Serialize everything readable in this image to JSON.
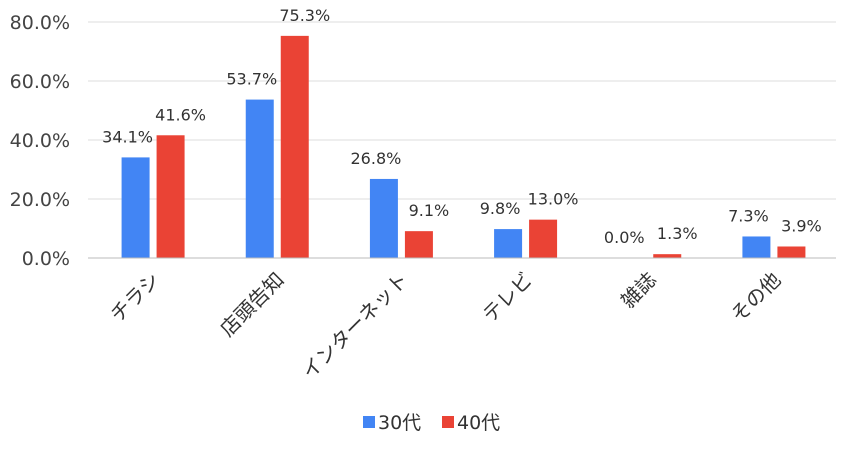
{
  "chart_data": {
    "type": "bar",
    "categories": [
      "チラシ",
      "店頭告知",
      "インターネット",
      "テレビ",
      "雑誌",
      "その他"
    ],
    "series": [
      {
        "name": "30代",
        "color": "#4285F4",
        "values": [
          34.1,
          53.7,
          26.8,
          9.8,
          0.0,
          7.3
        ],
        "labels": [
          "34.1%",
          "53.7%",
          "26.8%",
          "9.8%",
          "0.0%",
          "7.3%"
        ]
      },
      {
        "name": "40代",
        "color": "#EA4335",
        "values": [
          41.6,
          75.3,
          9.1,
          13.0,
          1.3,
          3.9
        ],
        "labels": [
          "41.6%",
          "75.3%",
          "9.1%",
          "13.0%",
          "1.3%",
          "3.9%"
        ]
      }
    ],
    "y_ticks": [
      0,
      20,
      40,
      60,
      80
    ],
    "y_tick_labels": [
      "0.0%",
      "20.0%",
      "40.0%",
      "60.0%",
      "80.0%"
    ],
    "ylim": [
      0,
      80
    ],
    "grid": true,
    "legend_position": "bottom",
    "title": "",
    "xlabel": "",
    "ylabel": ""
  }
}
